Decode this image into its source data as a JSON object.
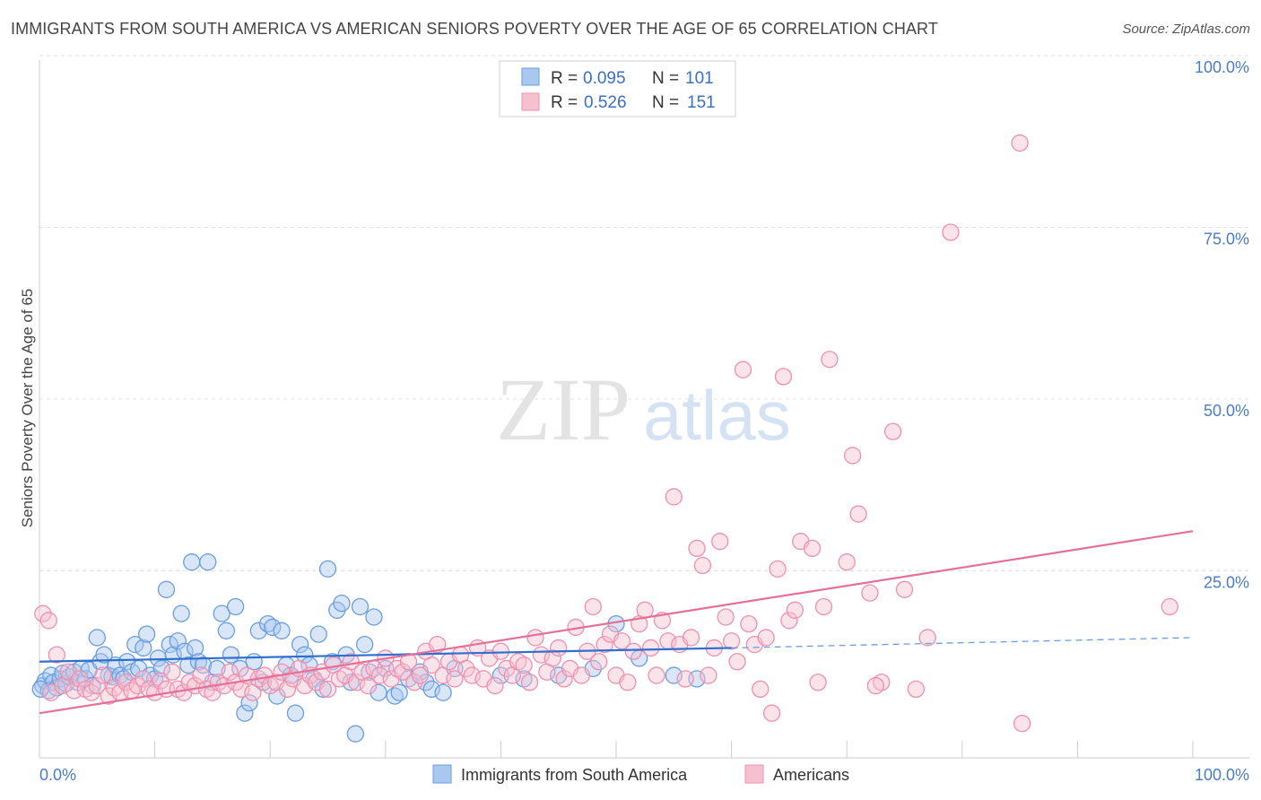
{
  "title": "IMMIGRANTS FROM SOUTH AMERICA VS AMERICAN SENIORS POVERTY OVER THE AGE OF 65 CORRELATION CHART",
  "source": "Source: ZipAtlas.com",
  "watermark": {
    "zip": "ZIP",
    "atlas": "atlas"
  },
  "chart_data": {
    "type": "scatter",
    "title": "IMMIGRANTS FROM SOUTH AMERICA VS AMERICAN SENIORS POVERTY OVER THE AGE OF 65 CORRELATION CHART",
    "xlabel": "",
    "ylabel": "Seniors Poverty Over the Age of 65",
    "xlim": [
      0,
      100
    ],
    "ylim": [
      0,
      100
    ],
    "x_tick_labels": {
      "min": "0.0%",
      "max": "100.0%"
    },
    "y_tick_labels": [
      "100.0%",
      "75.0%",
      "50.0%",
      "25.0%"
    ],
    "y_ticks": [
      100,
      75,
      50,
      25
    ],
    "grid": true,
    "legend_position": "top-center",
    "stats_legend": [
      {
        "r_label": "R =",
        "r_value": "0.095",
        "n_label": "N =",
        "n_value": "101",
        "color": "#6a9de0"
      },
      {
        "r_label": "R =",
        "r_value": "0.526",
        "n_label": "N =",
        "n_value": "151",
        "color": "#ee8fae"
      }
    ],
    "series": [
      {
        "name": "Immigrants from South America",
        "color": "#6a9de0",
        "fill": "#a9c8f0",
        "trend": {
          "x": [
            0,
            60
          ],
          "y": [
            14.0,
            16.0
          ],
          "dashed_extension": {
            "x": [
              60,
              100
            ],
            "y": [
              16.0,
              17.5
            ]
          }
        },
        "points": [
          [
            0.3,
            10.5
          ],
          [
            0.5,
            11.2
          ],
          [
            0.8,
            9.8
          ],
          [
            1.0,
            12.0
          ],
          [
            1.2,
            11.0
          ],
          [
            1.5,
            10.2
          ],
          [
            1.8,
            11.5
          ],
          [
            2.0,
            12.3
          ],
          [
            2.3,
            10.8
          ],
          [
            2.6,
            11.8
          ],
          [
            3.0,
            12.5
          ],
          [
            3.3,
            11.0
          ],
          [
            3.6,
            13.0
          ],
          [
            4.0,
            11.5
          ],
          [
            4.3,
            12.8
          ],
          [
            4.6,
            10.5
          ],
          [
            5.0,
            17.5
          ],
          [
            5.3,
            14.0
          ],
          [
            5.6,
            15.0
          ],
          [
            6.0,
            12.0
          ],
          [
            6.3,
            11.8
          ],
          [
            6.6,
            13.5
          ],
          [
            7.0,
            12.0
          ],
          [
            7.3,
            11.5
          ],
          [
            7.6,
            14.0
          ],
          [
            8.0,
            12.5
          ],
          [
            8.3,
            16.5
          ],
          [
            8.6,
            13.0
          ],
          [
            9.0,
            16.0
          ],
          [
            9.3,
            18.0
          ],
          [
            9.6,
            12.0
          ],
          [
            10.0,
            11.5
          ],
          [
            10.3,
            14.5
          ],
          [
            10.6,
            13.0
          ],
          [
            11.0,
            24.5
          ],
          [
            11.3,
            16.5
          ],
          [
            11.6,
            15.0
          ],
          [
            12.0,
            17.0
          ],
          [
            12.3,
            21.0
          ],
          [
            12.6,
            15.5
          ],
          [
            12.9,
            13.5
          ],
          [
            13.2,
            28.5
          ],
          [
            13.5,
            16.0
          ],
          [
            13.8,
            14.0
          ],
          [
            14.2,
            13.5
          ],
          [
            14.6,
            28.5
          ],
          [
            15.0,
            11.0
          ],
          [
            15.4,
            13.0
          ],
          [
            15.8,
            21.0
          ],
          [
            16.2,
            18.5
          ],
          [
            16.6,
            15.0
          ],
          [
            17.0,
            22.0
          ],
          [
            17.4,
            13.0
          ],
          [
            17.8,
            6.5
          ],
          [
            18.2,
            8.0
          ],
          [
            18.6,
            14.0
          ],
          [
            19.0,
            18.5
          ],
          [
            19.4,
            11.0
          ],
          [
            19.8,
            19.5
          ],
          [
            20.2,
            19.0
          ],
          [
            20.6,
            9.0
          ],
          [
            21.0,
            18.5
          ],
          [
            21.4,
            13.5
          ],
          [
            21.8,
            12.0
          ],
          [
            22.2,
            6.5
          ],
          [
            22.6,
            16.5
          ],
          [
            23.0,
            15.0
          ],
          [
            23.4,
            13.5
          ],
          [
            23.8,
            11.5
          ],
          [
            24.2,
            18.0
          ],
          [
            24.6,
            10.0
          ],
          [
            25.0,
            27.5
          ],
          [
            25.4,
            14.0
          ],
          [
            25.8,
            21.5
          ],
          [
            26.2,
            22.5
          ],
          [
            26.6,
            15.0
          ],
          [
            27.0,
            11.0
          ],
          [
            27.4,
            3.5
          ],
          [
            27.8,
            22.0
          ],
          [
            28.2,
            16.5
          ],
          [
            28.6,
            12.5
          ],
          [
            29.0,
            20.5
          ],
          [
            29.4,
            9.5
          ],
          [
            30.0,
            13.0
          ],
          [
            30.8,
            9.0
          ],
          [
            31.2,
            9.5
          ],
          [
            32.0,
            11.5
          ],
          [
            33.0,
            12.5
          ],
          [
            33.5,
            11.0
          ],
          [
            34.0,
            10.0
          ],
          [
            35.0,
            9.5
          ],
          [
            36.0,
            13.0
          ],
          [
            40.0,
            12.0
          ],
          [
            42.0,
            11.5
          ],
          [
            45.0,
            12.0
          ],
          [
            48.0,
            13.0
          ],
          [
            50.0,
            19.5
          ],
          [
            52.0,
            14.5
          ],
          [
            55.0,
            12.0
          ],
          [
            57.0,
            11.5
          ],
          [
            0.1,
            10.0
          ]
        ]
      },
      {
        "name": "Americans",
        "color": "#ee8fae",
        "fill": "#f6c0d1",
        "trend": {
          "x": [
            0,
            100
          ],
          "y": [
            6.5,
            33.0
          ]
        },
        "points": [
          [
            0.3,
            21.0
          ],
          [
            0.8,
            20.0
          ],
          [
            1.0,
            9.5
          ],
          [
            1.5,
            15.0
          ],
          [
            2.0,
            10.5
          ],
          [
            2.5,
            12.5
          ],
          [
            3.0,
            9.8
          ],
          [
            3.5,
            11.5
          ],
          [
            4.0,
            10.0
          ],
          [
            4.5,
            9.5
          ],
          [
            5.0,
            10.5
          ],
          [
            5.5,
            12.0
          ],
          [
            6.0,
            9.0
          ],
          [
            6.5,
            10.2
          ],
          [
            7.0,
            9.5
          ],
          [
            7.5,
            11.0
          ],
          [
            8.0,
            9.8
          ],
          [
            8.5,
            10.5
          ],
          [
            9.0,
            11.5
          ],
          [
            9.5,
            10.0
          ],
          [
            10.0,
            9.5
          ],
          [
            10.5,
            11.2
          ],
          [
            11.0,
            10.0
          ],
          [
            11.5,
            12.5
          ],
          [
            12.0,
            10.0
          ],
          [
            12.5,
            9.5
          ],
          [
            13.0,
            11.0
          ],
          [
            13.5,
            10.5
          ],
          [
            14.0,
            12.0
          ],
          [
            14.5,
            10.0
          ],
          [
            15.0,
            9.5
          ],
          [
            15.5,
            11.0
          ],
          [
            16.0,
            10.5
          ],
          [
            16.5,
            12.5
          ],
          [
            17.0,
            11.0
          ],
          [
            17.5,
            10.0
          ],
          [
            18.0,
            12.0
          ],
          [
            18.5,
            9.5
          ],
          [
            19.0,
            11.5
          ],
          [
            19.5,
            12.0
          ],
          [
            20.0,
            10.5
          ],
          [
            20.5,
            11.0
          ],
          [
            21.0,
            12.5
          ],
          [
            21.5,
            10.0
          ],
          [
            22.0,
            11.5
          ],
          [
            22.5,
            13.0
          ],
          [
            23.0,
            10.5
          ],
          [
            23.5,
            12.0
          ],
          [
            24.0,
            11.0
          ],
          [
            24.5,
            12.5
          ],
          [
            25.0,
            10.0
          ],
          [
            25.5,
            13.5
          ],
          [
            26.0,
            11.5
          ],
          [
            26.5,
            12.0
          ],
          [
            27.0,
            14.0
          ],
          [
            27.5,
            11.0
          ],
          [
            28.0,
            12.5
          ],
          [
            28.5,
            10.5
          ],
          [
            29.0,
            13.0
          ],
          [
            29.5,
            12.0
          ],
          [
            30.0,
            14.5
          ],
          [
            30.5,
            11.5
          ],
          [
            31.0,
            13.0
          ],
          [
            31.5,
            12.5
          ],
          [
            32.0,
            14.0
          ],
          [
            32.5,
            11.0
          ],
          [
            33.0,
            12.0
          ],
          [
            33.5,
            15.5
          ],
          [
            34.0,
            13.5
          ],
          [
            34.5,
            16.5
          ],
          [
            35.0,
            12.0
          ],
          [
            35.5,
            14.0
          ],
          [
            36.0,
            11.5
          ],
          [
            36.5,
            15.0
          ],
          [
            37.0,
            13.0
          ],
          [
            37.5,
            12.0
          ],
          [
            38.0,
            16.0
          ],
          [
            38.5,
            11.5
          ],
          [
            39.0,
            14.5
          ],
          [
            39.5,
            10.5
          ],
          [
            40.0,
            15.5
          ],
          [
            40.5,
            13.0
          ],
          [
            41.0,
            12.0
          ],
          [
            41.5,
            14.0
          ],
          [
            42.0,
            13.5
          ],
          [
            42.5,
            11.0
          ],
          [
            43.0,
            17.5
          ],
          [
            43.5,
            15.0
          ],
          [
            44.0,
            12.5
          ],
          [
            44.5,
            14.5
          ],
          [
            45.0,
            16.0
          ],
          [
            45.5,
            11.5
          ],
          [
            46.0,
            13.0
          ],
          [
            46.5,
            19.0
          ],
          [
            47.0,
            12.0
          ],
          [
            47.5,
            15.5
          ],
          [
            48.0,
            22.0
          ],
          [
            48.5,
            14.0
          ],
          [
            49.0,
            16.5
          ],
          [
            49.5,
            18.0
          ],
          [
            50.0,
            12.0
          ],
          [
            50.5,
            17.0
          ],
          [
            51.0,
            11.0
          ],
          [
            51.5,
            15.5
          ],
          [
            52.0,
            19.5
          ],
          [
            52.5,
            21.5
          ],
          [
            53.0,
            16.0
          ],
          [
            53.5,
            12.0
          ],
          [
            54.0,
            20.0
          ],
          [
            54.5,
            17.0
          ],
          [
            55.0,
            38.0
          ],
          [
            55.5,
            16.5
          ],
          [
            56.0,
            11.5
          ],
          [
            56.5,
            17.5
          ],
          [
            57.0,
            30.5
          ],
          [
            57.5,
            28.0
          ],
          [
            58.0,
            12.0
          ],
          [
            58.5,
            16.0
          ],
          [
            59.0,
            31.5
          ],
          [
            59.5,
            20.5
          ],
          [
            60.0,
            17.0
          ],
          [
            60.5,
            14.0
          ],
          [
            61.0,
            56.5
          ],
          [
            61.5,
            19.5
          ],
          [
            62.0,
            16.5
          ],
          [
            62.5,
            10.0
          ],
          [
            63.0,
            17.5
          ],
          [
            63.5,
            6.5
          ],
          [
            64.0,
            27.5
          ],
          [
            64.5,
            55.5
          ],
          [
            65.0,
            20.0
          ],
          [
            65.5,
            21.5
          ],
          [
            66.0,
            31.5
          ],
          [
            67.0,
            30.5
          ],
          [
            67.5,
            11.0
          ],
          [
            68.0,
            22.0
          ],
          [
            68.5,
            58.0
          ],
          [
            70.0,
            28.5
          ],
          [
            70.5,
            44.0
          ],
          [
            71.0,
            35.5
          ],
          [
            72.0,
            24.0
          ],
          [
            73.0,
            11.0
          ],
          [
            74.0,
            47.5
          ],
          [
            75.0,
            24.5
          ],
          [
            76.0,
            10.0
          ],
          [
            77.0,
            17.5
          ],
          [
            79.0,
            76.5
          ],
          [
            85.0,
            89.5
          ],
          [
            85.2,
            5.0
          ],
          [
            98.0,
            22.0
          ],
          [
            72.5,
            10.5
          ]
        ]
      }
    ]
  },
  "bottom_legend": [
    {
      "label": "Immigrants from South America",
      "color": "#6a9de0",
      "fill": "#a9c8f0"
    },
    {
      "label": "Americans",
      "color": "#ee8fae",
      "fill": "#f6c0d1"
    }
  ]
}
